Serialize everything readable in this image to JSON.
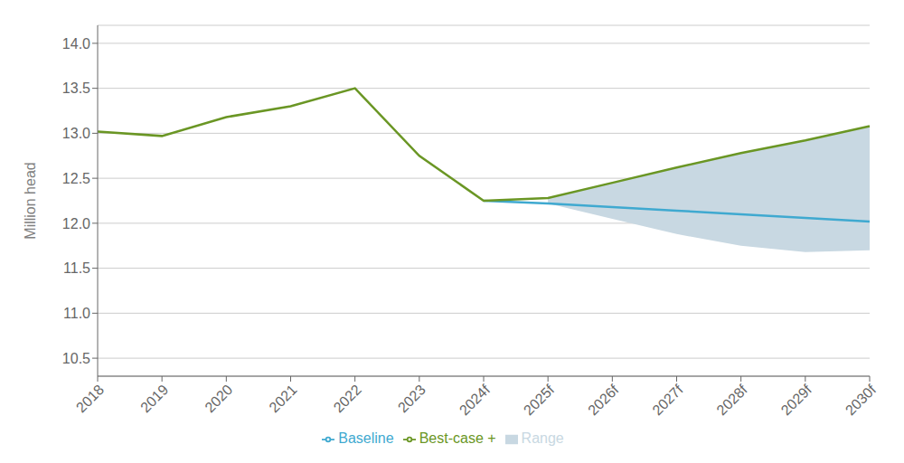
{
  "chart_data": {
    "type": "line",
    "categories": [
      "2018",
      "2019",
      "2020",
      "2021",
      "2022",
      "2023",
      "2024f",
      "2025f",
      "2026f",
      "2027f",
      "2028f",
      "2029f",
      "2030f"
    ],
    "ylabel": "Million head",
    "ylim": [
      10.3,
      14.2
    ],
    "yticks": [
      10.5,
      {
        "value": 11,
        "label": "11.0"
      },
      11.5,
      {
        "value": 12,
        "label": "12.0"
      },
      12.5,
      {
        "value": 13,
        "label": "13.0"
      },
      13.5,
      {
        "value": 14,
        "label": "14.0"
      }
    ],
    "grid": true,
    "legend": "bottom",
    "series": [
      {
        "name": "Range",
        "type": "area",
        "color": "#c8d8e2",
        "lower": [
          null,
          null,
          null,
          null,
          null,
          null,
          null,
          12.22,
          12.05,
          11.88,
          11.75,
          11.68,
          11.7
        ],
        "upper": [
          null,
          null,
          null,
          null,
          null,
          null,
          null,
          12.28,
          12.45,
          12.62,
          12.78,
          12.92,
          13.08
        ]
      },
      {
        "name": "Baseline",
        "type": "line",
        "color": "#3fa9d0",
        "values": [
          null,
          null,
          null,
          null,
          null,
          null,
          12.25,
          12.22,
          12.18,
          12.14,
          12.1,
          12.06,
          12.02
        ]
      },
      {
        "name": "Best-case +",
        "type": "line",
        "color": "#6a9624",
        "values": [
          13.02,
          12.97,
          13.18,
          13.3,
          13.5,
          12.75,
          12.25,
          12.28,
          12.45,
          12.62,
          12.78,
          12.92,
          13.08
        ]
      }
    ]
  }
}
